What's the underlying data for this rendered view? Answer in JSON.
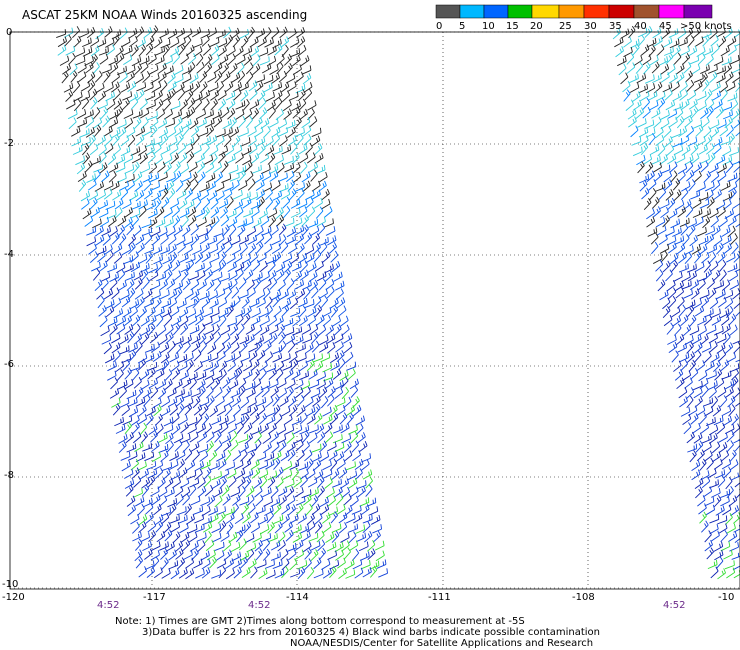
{
  "title": "ASCAT 25KM NOAA Winds 20160325 ascending",
  "legend": {
    "items": [
      {
        "label": "0",
        "color": "#555555"
      },
      {
        "label": "5",
        "color": "#00b8ff"
      },
      {
        "label": "10",
        "color": "#0066ff"
      },
      {
        "label": "15",
        "color": "#00c000"
      },
      {
        "label": "20",
        "color": "#ffd800"
      },
      {
        "label": "25",
        "color": "#ff9900"
      },
      {
        "label": "30",
        "color": "#ff3000"
      },
      {
        "label": "35",
        "color": "#cc0000"
      },
      {
        "label": "40",
        "color": "#a0522d"
      },
      {
        "label": "45",
        "color": "#ff00ff"
      },
      {
        "label": ">50 knots",
        "color": "#7a00b0"
      }
    ]
  },
  "axes": {
    "y_labels": [
      "0",
      "-2",
      "-4",
      "-6",
      "-8",
      "-10"
    ],
    "x_labels": [
      "-120",
      "-117",
      "-114",
      "-111",
      "-108",
      "-10"
    ]
  },
  "times": [
    "4:52",
    "4:52",
    "4:52"
  ],
  "notes": [
    "Note: 1) Times are GMT 2)Times along bottom correspond to measurement at -5S",
    "3)Data buffer is 22 hrs from 20160325 4) Black wind barbs indicate possible contamination",
    "NOAA/NESDIS/Center for Satellite Applications and Research"
  ]
}
